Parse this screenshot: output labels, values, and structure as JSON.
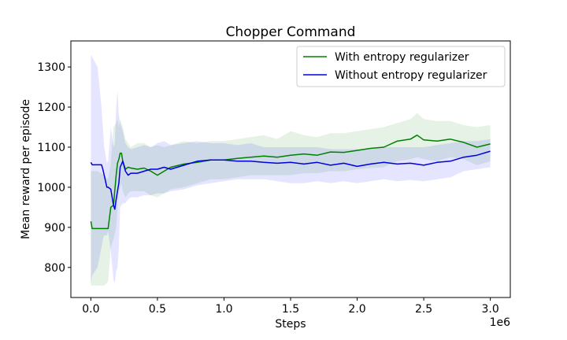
{
  "chart_data": {
    "type": "line",
    "title": "Chopper Command",
    "xlabel": "Steps",
    "ylabel": "Mean reward per episode",
    "x_offset_label": "1e6",
    "xlim": [
      -0.15,
      3.15
    ],
    "ylim": [
      725,
      1365
    ],
    "xticks": [
      0.0,
      0.5,
      1.0,
      1.5,
      2.0,
      2.5,
      3.0
    ],
    "xtick_labels": [
      "0.0",
      "0.5",
      "1.0",
      "1.5",
      "2.0",
      "2.5",
      "3.0"
    ],
    "yticks": [
      800,
      900,
      1000,
      1100,
      1200,
      1300
    ],
    "ytick_labels": [
      "800",
      "900",
      "1000",
      "1100",
      "1200",
      "1300"
    ],
    "grid": false,
    "legend_position": "top-right",
    "series": [
      {
        "name": "With entropy regularizer",
        "color": "#008000",
        "band_color": "#008000",
        "x": [
          0.0,
          0.01,
          0.05,
          0.1,
          0.13,
          0.15,
          0.17,
          0.19,
          0.2,
          0.21,
          0.22,
          0.23,
          0.24,
          0.26,
          0.28,
          0.3,
          0.35,
          0.4,
          0.45,
          0.5,
          0.55,
          0.6,
          0.7,
          0.8,
          0.9,
          1.0,
          1.1,
          1.2,
          1.3,
          1.4,
          1.5,
          1.6,
          1.7,
          1.8,
          1.9,
          2.0,
          2.1,
          2.2,
          2.3,
          2.4,
          2.45,
          2.5,
          2.6,
          2.7,
          2.8,
          2.9,
          3.0
        ],
        "mean": [
          915,
          897,
          897,
          897,
          897,
          950,
          955,
          1030,
          1060,
          1070,
          1085,
          1085,
          1065,
          1045,
          1050,
          1048,
          1045,
          1048,
          1040,
          1030,
          1040,
          1050,
          1058,
          1062,
          1068,
          1068,
          1072,
          1075,
          1078,
          1075,
          1080,
          1083,
          1080,
          1088,
          1087,
          1092,
          1097,
          1100,
          1115,
          1120,
          1130,
          1118,
          1115,
          1120,
          1112,
          1100,
          1108
        ],
        "upper": [
          1040,
          1040,
          1040,
          1030,
          1020,
          1060,
          1150,
          1160,
          1170,
          1150,
          1170,
          1160,
          1150,
          1120,
          1110,
          1100,
          1110,
          1110,
          1100,
          1105,
          1100,
          1105,
          1115,
          1110,
          1115,
          1115,
          1120,
          1125,
          1130,
          1120,
          1140,
          1130,
          1125,
          1135,
          1135,
          1140,
          1145,
          1150,
          1160,
          1170,
          1185,
          1170,
          1165,
          1165,
          1155,
          1150,
          1155
        ],
        "lower": [
          755,
          755,
          755,
          755,
          765,
          850,
          870,
          900,
          950,
          990,
          1000,
          1010,
          990,
          975,
          985,
          990,
          990,
          990,
          980,
          975,
          985,
          995,
          1000,
          1010,
          1020,
          1020,
          1025,
          1030,
          1030,
          1030,
          1030,
          1035,
          1035,
          1040,
          1040,
          1045,
          1048,
          1050,
          1065,
          1070,
          1075,
          1070,
          1065,
          1075,
          1070,
          1055,
          1065
        ]
      },
      {
        "name": "Without entropy regularizer",
        "color": "#0000dd",
        "band_color": "#0000ff",
        "x": [
          0.0,
          0.01,
          0.05,
          0.08,
          0.09,
          0.1,
          0.12,
          0.13,
          0.15,
          0.17,
          0.18,
          0.19,
          0.2,
          0.21,
          0.22,
          0.24,
          0.26,
          0.28,
          0.3,
          0.35,
          0.4,
          0.45,
          0.5,
          0.55,
          0.6,
          0.7,
          0.8,
          0.9,
          1.0,
          1.1,
          1.2,
          1.3,
          1.4,
          1.5,
          1.6,
          1.7,
          1.8,
          1.9,
          2.0,
          2.1,
          2.2,
          2.3,
          2.4,
          2.5,
          2.6,
          2.7,
          2.8,
          2.9,
          3.0
        ],
        "mean": [
          1062,
          1056,
          1056,
          1056,
          1045,
          1030,
          1000,
          1000,
          995,
          955,
          945,
          970,
          990,
          1010,
          1050,
          1065,
          1040,
          1030,
          1035,
          1035,
          1040,
          1045,
          1045,
          1050,
          1045,
          1055,
          1065,
          1068,
          1068,
          1065,
          1065,
          1062,
          1060,
          1062,
          1058,
          1062,
          1055,
          1060,
          1052,
          1058,
          1062,
          1058,
          1060,
          1055,
          1062,
          1065,
          1075,
          1080,
          1090
        ],
        "upper": [
          1330,
          1325,
          1300,
          1200,
          1150,
          1100,
          1060,
          1065,
          1150,
          1100,
          1110,
          1200,
          1240,
          1180,
          1160,
          1140,
          1110,
          1100,
          1095,
          1100,
          1105,
          1100,
          1110,
          1115,
          1105,
          1110,
          1115,
          1110,
          1110,
          1105,
          1110,
          1100,
          1100,
          1100,
          1100,
          1100,
          1095,
          1095,
          1095,
          1095,
          1100,
          1100,
          1100,
          1100,
          1105,
          1110,
          1115,
          1115,
          1120
        ],
        "lower": [
          760,
          780,
          800,
          850,
          870,
          880,
          880,
          890,
          840,
          770,
          760,
          790,
          800,
          850,
          950,
          960,
          960,
          970,
          975,
          975,
          980,
          980,
          985,
          985,
          990,
          995,
          1005,
          1010,
          1015,
          1020,
          1020,
          1020,
          1015,
          1010,
          1010,
          1015,
          1010,
          1015,
          1010,
          1015,
          1020,
          1015,
          1018,
          1015,
          1020,
          1025,
          1040,
          1045,
          1050
        ]
      }
    ]
  }
}
